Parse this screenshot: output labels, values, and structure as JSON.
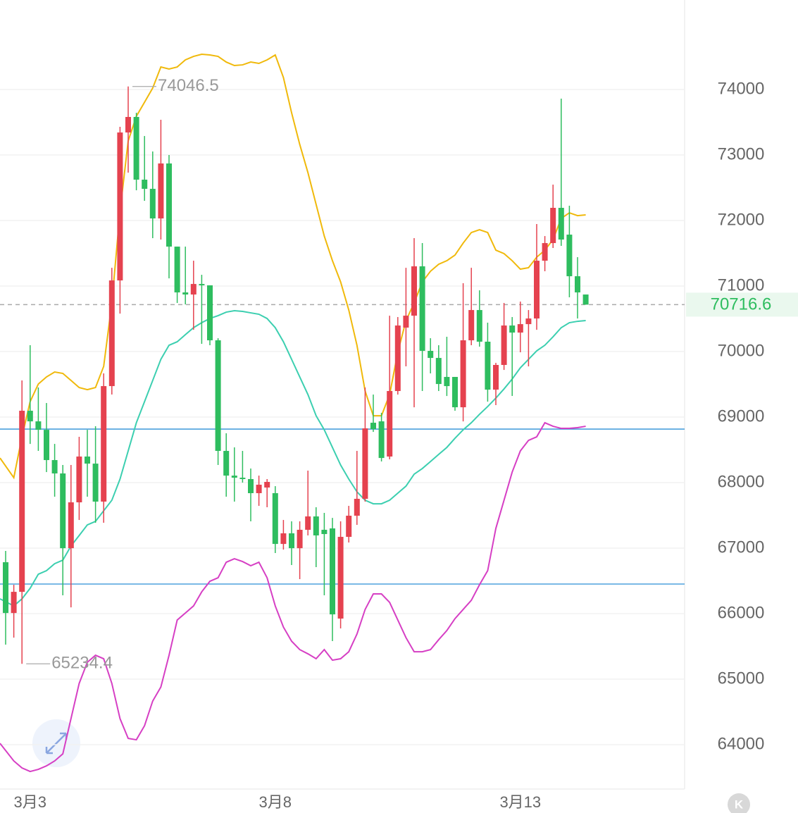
{
  "chart_data": {
    "type": "candlestick",
    "categories": [
      null,
      null,
      null,
      "3月3",
      null,
      null,
      null,
      null,
      null,
      null,
      null,
      null,
      null,
      null,
      null,
      null,
      null,
      null,
      null,
      null,
      null,
      null,
      null,
      null,
      null,
      null,
      null,
      null,
      null,
      null,
      null,
      null,
      null,
      "3月8",
      null,
      null,
      null,
      null,
      null,
      null,
      null,
      null,
      null,
      null,
      null,
      null,
      null,
      null,
      null,
      null,
      null,
      null,
      null,
      null,
      null,
      null,
      null,
      null,
      null,
      null,
      null,
      null,
      null,
      "3月13",
      null,
      null,
      null,
      null,
      null,
      null,
      null,
      null
    ],
    "open": [
      66785,
      66010,
      66333,
      69097,
      68935,
      68806,
      68344,
      68140,
      66999,
      67699,
      68398,
      68290,
      67710,
      69473,
      71086,
      73344,
      73581,
      72624,
      72484,
      72032,
      72871,
      71602,
      70903,
      70871,
      71032,
      71011,
      70172,
      68484,
      68107,
      68075,
      68054,
      67839,
      67925,
      67839,
      67064,
      67226,
      66999,
      67280,
      67484,
      67280,
      67301,
      65925,
      67172,
      67495,
      67753,
      68914,
      68935,
      68398,
      69398,
      70366,
      70548,
      71301,
      70011,
      69903,
      69613,
      69613,
      69150,
      70172,
      70634,
      70151,
      69419,
      69796,
      70398,
      70290,
      70419,
      70505,
      71387,
      71656,
      72194,
      71785,
      71150,
      70871
    ],
    "high": [
      66957,
      66441,
      69559,
      70097,
      69452,
      69215,
      68591,
      68269,
      68269,
      68699,
      68806,
      68860,
      69667,
      71279,
      73430,
      74046.5,
      73645,
      73290,
      73054,
      73538,
      73000,
      71602,
      71602,
      71387,
      71172,
      71011,
      70204,
      68753,
      68538,
      68484,
      68215,
      68107,
      68054,
      67946,
      67430,
      67409,
      67409,
      68183,
      67624,
      67538,
      67462,
      67409,
      67645,
      68484,
      69452,
      69344,
      69064,
      70548,
      70527,
      71279,
      71731,
      71656,
      70204,
      70097,
      70226,
      69613,
      71043,
      71279,
      70935,
      70441,
      69828,
      70742,
      70527,
      70763,
      70634,
      71946,
      71763,
      72548,
      73860,
      72226,
      71441,
      70871
    ],
    "low": [
      65527,
      65634,
      65234.4,
      68591,
      68484,
      68161,
      67785,
      66280,
      66096,
      67430,
      67785,
      67387,
      67387,
      69344,
      70580,
      72731,
      72462,
      72301,
      71731,
      71710,
      71118,
      70742,
      70720,
      70333,
      70118,
      70097,
      68269,
      67785,
      67710,
      68000,
      67409,
      67645,
      67624,
      66925,
      66978,
      66742,
      66527,
      67194,
      66710,
      66280,
      65581,
      65774,
      67086,
      67355,
      67710,
      68774,
      68323,
      68355,
      69344,
      69774,
      69150,
      69398,
      69667,
      69398,
      69322,
      69097,
      68935,
      70097,
      70075,
      69236,
      69183,
      69720,
      69323,
      69989,
      69774,
      70333,
      71226,
      71581,
      71613,
      70828,
      70505,
      70716.6
    ],
    "close": [
      66010,
      66333,
      69097,
      68935,
      68806,
      68344,
      68140,
      66999,
      67699,
      68398,
      68290,
      67710,
      69473,
      71086,
      73344,
      73581,
      72624,
      72484,
      72032,
      72871,
      71602,
      70903,
      70871,
      71032,
      71011,
      70172,
      68484,
      68107,
      68075,
      68054,
      67839,
      67968,
      68011,
      67064,
      67226,
      66999,
      67280,
      67484,
      67194,
      67215,
      65989,
      67172,
      67495,
      67753,
      68828,
      68817,
      68376,
      69398,
      70398,
      70548,
      71301,
      70011,
      69903,
      69505,
      69473,
      69150,
      70172,
      70634,
      70151,
      69419,
      69796,
      70398,
      70290,
      70419,
      70505,
      71387,
      71656,
      72194,
      71710,
      71150,
      70903,
      70716.6
    ],
    "up_color": "#e5424f",
    "down_color": "#2ebd5f",
    "series": [
      {
        "color": "#f0b90b",
        "values": [
          68376,
          68075,
          68699,
          69236,
          69505,
          69613,
          69688,
          69667,
          69559,
          69451,
          69419,
          69451,
          69774,
          70742,
          72140,
          73215,
          73591,
          73806,
          74022,
          74344,
          74312,
          74344,
          74452,
          74505,
          74538,
          74527,
          74505,
          74419,
          74366,
          74376,
          74419,
          74398,
          74452,
          74527,
          74183,
          73645,
          73161,
          72731,
          72247,
          71763,
          71387,
          71064,
          70634,
          70097,
          69398,
          69021,
          69021,
          69344,
          69989,
          70473,
          70742,
          71064,
          71226,
          71333,
          71387,
          71473,
          71656,
          71817,
          71860,
          71817,
          71548,
          71495,
          71387,
          71258,
          71280,
          71441,
          71548,
          71710,
          72032,
          72118,
          72075,
          72086
        ]
      },
      {
        "color": "#3ccfb0",
        "values": [
          66226,
          66118,
          66226,
          66387,
          66602,
          66656,
          66763,
          66817,
          67032,
          67193,
          67355,
          67408,
          67570,
          67731,
          68054,
          68484,
          68914,
          69236,
          69559,
          69882,
          70097,
          70150,
          70258,
          70365,
          70441,
          70505,
          70548,
          70602,
          70624,
          70613,
          70591,
          70570,
          70505,
          70365,
          70150,
          69882,
          69613,
          69344,
          69021,
          68806,
          68537,
          68269,
          68054,
          67860,
          67731,
          67677,
          67677,
          67731,
          67839,
          67946,
          68129,
          68215,
          68322,
          68430,
          68537,
          68677,
          68806,
          68914,
          69043,
          69161,
          69290,
          69430,
          69581,
          69753,
          69882,
          70011,
          70097,
          70226,
          70365,
          70441,
          70462,
          70473
        ]
      },
      {
        "color": "#d63fc4",
        "values": [
          64021,
          63752,
          63645,
          63591,
          63623,
          63677,
          63752,
          63860,
          64398,
          64935,
          65258,
          65365,
          65312,
          64935,
          64398,
          64096,
          64075,
          64290,
          64666,
          64881,
          65365,
          65903,
          66010,
          66118,
          66333,
          66494,
          66548,
          66785,
          66838,
          66795,
          66731,
          66785,
          66548,
          66118,
          65795,
          65580,
          65451,
          65387,
          65312,
          65451,
          65290,
          65312,
          65419,
          65688,
          66064,
          66301,
          66301,
          66172,
          65903,
          65634,
          65419,
          65419,
          65451,
          65602,
          65742,
          65924,
          66064,
          66204,
          66441,
          66656,
          67301,
          67731,
          68161,
          68484,
          68645,
          68699,
          68914,
          68860,
          68828,
          68828,
          68839,
          68860
        ]
      }
    ],
    "hlines": [
      68817,
      66452
    ],
    "hline_color": "#2b8fd6",
    "last_price": 70716.6,
    "high_marker": 74046.5,
    "low_marker": 65234.4,
    "ylim": [
      63323,
      75366
    ],
    "yticks": [
      64000,
      65000,
      66000,
      67000,
      68000,
      69000,
      70000,
      71000,
      72000,
      73000,
      74000
    ],
    "grid": true,
    "corner_badge": "K"
  }
}
